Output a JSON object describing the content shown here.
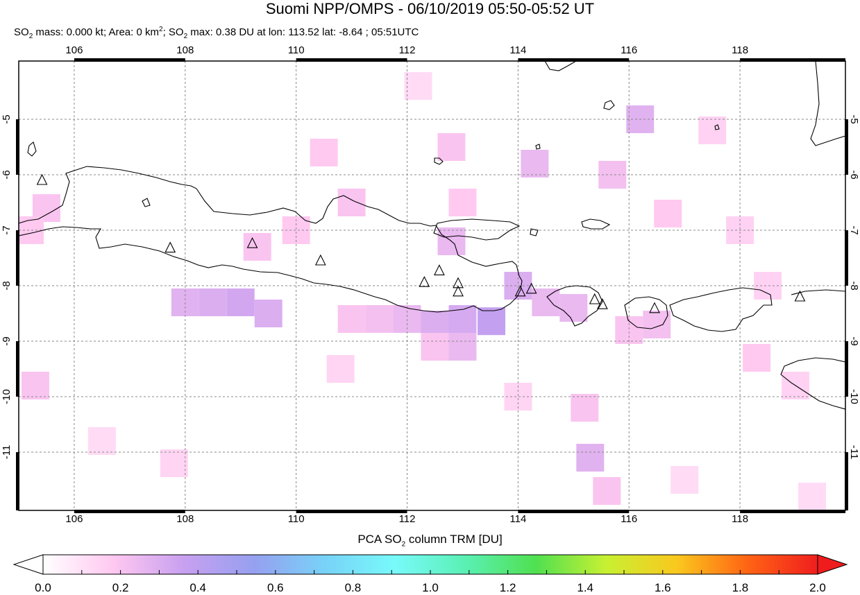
{
  "title": "Suomi NPP/OMPS - 06/10/2019 05:50-05:52 UT",
  "subtitle": {
    "so2_mass_prefix": "SO",
    "so2_mass_sub": "2",
    "so2_mass_text": " mass: 0.000 kt; Area: 0 km",
    "area_sup": "2",
    "so2_max_sep": "; SO",
    "so2_max_sub": "2",
    "so2_max_text": " max: 0.38 DU at lon: 113.52 lat: -8.64 ; 05:51UTC"
  },
  "map": {
    "lon_range": [
      105.0,
      119.9
    ],
    "lat_range": [
      -12.05,
      -3.95
    ],
    "lon_ticks": [
      "106",
      "108",
      "110",
      "112",
      "114",
      "116",
      "118"
    ],
    "lat_ticks": [
      "-5",
      "-6",
      "-7",
      "-8",
      "-9",
      "-10",
      "-11"
    ],
    "gridlines": "dashed",
    "volcano_marker": "triangle-outline",
    "volcanoes": [
      {
        "lon": 105.42,
        "lat": -6.1
      },
      {
        "lon": 107.73,
        "lat": -7.32
      },
      {
        "lon": 109.21,
        "lat": -7.24
      },
      {
        "lon": 110.44,
        "lat": -7.55
      },
      {
        "lon": 112.31,
        "lat": -7.94
      },
      {
        "lon": 112.58,
        "lat": -7.73
      },
      {
        "lon": 112.92,
        "lat": -7.96
      },
      {
        "lon": 112.92,
        "lat": -8.11
      },
      {
        "lon": 114.04,
        "lat": -8.11
      },
      {
        "lon": 114.24,
        "lat": -8.06
      },
      {
        "lon": 115.38,
        "lat": -8.25
      },
      {
        "lon": 115.52,
        "lat": -8.34
      },
      {
        "lon": 116.46,
        "lat": -8.41
      },
      {
        "lon": 119.08,
        "lat": -8.2
      }
    ],
    "coastline_color": "#000000",
    "so2_cells": [
      {
        "lon": 108.0,
        "lat": -8.3,
        "du": 0.28
      },
      {
        "lon": 108.5,
        "lat": -8.3,
        "du": 0.3
      },
      {
        "lon": 109.0,
        "lat": -8.3,
        "du": 0.33
      },
      {
        "lon": 109.5,
        "lat": -8.5,
        "du": 0.3
      },
      {
        "lon": 111.0,
        "lat": -8.6,
        "du": 0.2
      },
      {
        "lon": 111.5,
        "lat": -8.6,
        "du": 0.22
      },
      {
        "lon": 112.0,
        "lat": -8.6,
        "du": 0.25
      },
      {
        "lon": 112.5,
        "lat": -8.7,
        "du": 0.3
      },
      {
        "lon": 113.0,
        "lat": -8.6,
        "du": 0.32
      },
      {
        "lon": 113.52,
        "lat": -8.64,
        "du": 0.38
      },
      {
        "lon": 113.0,
        "lat": -9.1,
        "du": 0.25
      },
      {
        "lon": 112.5,
        "lat": -9.1,
        "du": 0.2
      },
      {
        "lon": 114.0,
        "lat": -8.0,
        "du": 0.3
      },
      {
        "lon": 114.5,
        "lat": -8.3,
        "du": 0.25
      },
      {
        "lon": 115.0,
        "lat": -8.4,
        "du": 0.25
      },
      {
        "lon": 116.5,
        "lat": -8.7,
        "du": 0.22
      },
      {
        "lon": 116.0,
        "lat": -8.8,
        "du": 0.2
      },
      {
        "lon": 116.2,
        "lat": -5.0,
        "du": 0.28
      },
      {
        "lon": 115.7,
        "lat": -6.0,
        "du": 0.22
      },
      {
        "lon": 114.3,
        "lat": -5.8,
        "du": 0.25
      },
      {
        "lon": 112.8,
        "lat": -5.5,
        "du": 0.2
      },
      {
        "lon": 112.8,
        "lat": -7.2,
        "du": 0.25
      },
      {
        "lon": 113.0,
        "lat": -6.5,
        "du": 0.18
      },
      {
        "lon": 116.7,
        "lat": -6.7,
        "du": 0.18
      },
      {
        "lon": 117.5,
        "lat": -5.2,
        "du": 0.15
      },
      {
        "lon": 118.0,
        "lat": -7.0,
        "du": 0.15
      },
      {
        "lon": 118.5,
        "lat": -8.0,
        "du": 0.15
      },
      {
        "lon": 118.3,
        "lat": -9.3,
        "du": 0.18
      },
      {
        "lon": 119.0,
        "lat": -9.8,
        "du": 0.15
      },
      {
        "lon": 105.3,
        "lat": -9.8,
        "du": 0.2
      },
      {
        "lon": 105.5,
        "lat": -6.6,
        "du": 0.2
      },
      {
        "lon": 105.2,
        "lat": -7.0,
        "du": 0.18
      },
      {
        "lon": 106.5,
        "lat": -10.8,
        "du": 0.12
      },
      {
        "lon": 110.5,
        "lat": -5.6,
        "du": 0.18
      },
      {
        "lon": 112.2,
        "lat": -4.4,
        "du": 0.12
      },
      {
        "lon": 111.0,
        "lat": -6.5,
        "du": 0.2
      },
      {
        "lon": 110.0,
        "lat": -7.0,
        "du": 0.18
      },
      {
        "lon": 109.3,
        "lat": -7.3,
        "du": 0.2
      },
      {
        "lon": 115.2,
        "lat": -10.2,
        "du": 0.2
      },
      {
        "lon": 115.3,
        "lat": -11.1,
        "du": 0.28
      },
      {
        "lon": 115.6,
        "lat": -11.7,
        "du": 0.2
      },
      {
        "lon": 114.0,
        "lat": -10.0,
        "du": 0.14
      },
      {
        "lon": 110.8,
        "lat": -9.5,
        "du": 0.14
      },
      {
        "lon": 107.8,
        "lat": -11.2,
        "du": 0.14
      },
      {
        "lon": 119.3,
        "lat": -11.8,
        "du": 0.12
      },
      {
        "lon": 117.0,
        "lat": -11.5,
        "du": 0.12
      }
    ]
  },
  "colorbar": {
    "title_prefix": "PCA SO",
    "title_sub": "2",
    "title_suffix": " column TRM [DU]",
    "min": 0.0,
    "max": 2.0,
    "labels": [
      "0.0",
      "0.2",
      "0.4",
      "0.6",
      "0.8",
      "1.0",
      "1.2",
      "1.4",
      "1.6",
      "1.8",
      "2.0"
    ],
    "colors": [
      "#ffffff",
      "#ffc8f0",
      "#c8a0f0",
      "#96a0f0",
      "#78d2f8",
      "#78fafa",
      "#5af0b4",
      "#50e050",
      "#c8f032",
      "#fac81e",
      "#ff6414",
      "#f01e1e"
    ],
    "over_color": "#ee1c1c",
    "under_color": "#ffffff"
  }
}
